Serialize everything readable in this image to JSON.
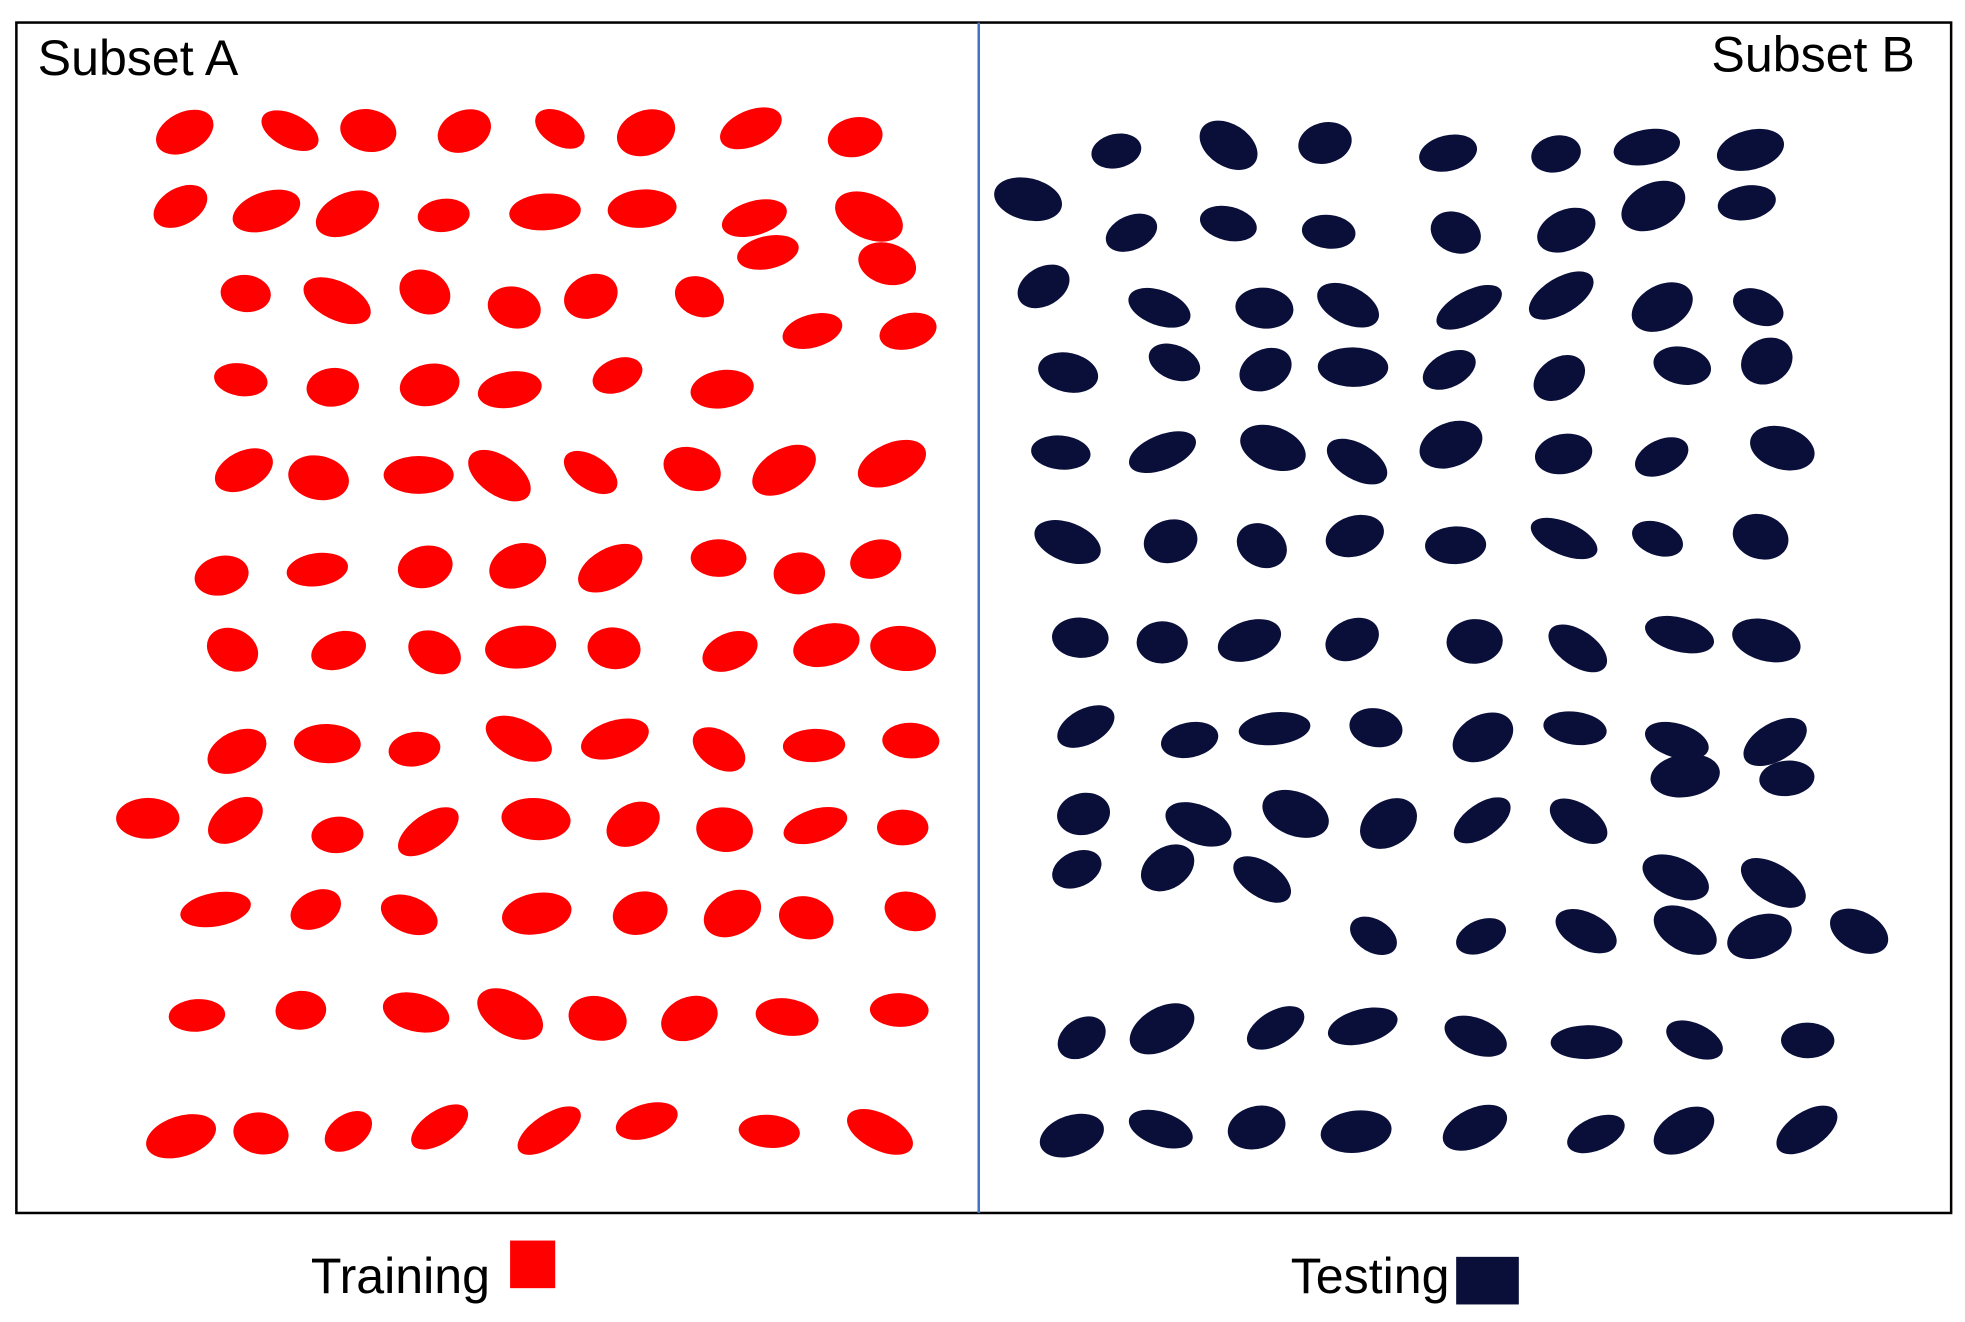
{
  "panels": [
    {
      "title": "Subset A"
    },
    {
      "title": "Subset B"
    }
  ],
  "legend": [
    {
      "label": "Training"
    },
    {
      "label": "Testing"
    }
  ]
}
